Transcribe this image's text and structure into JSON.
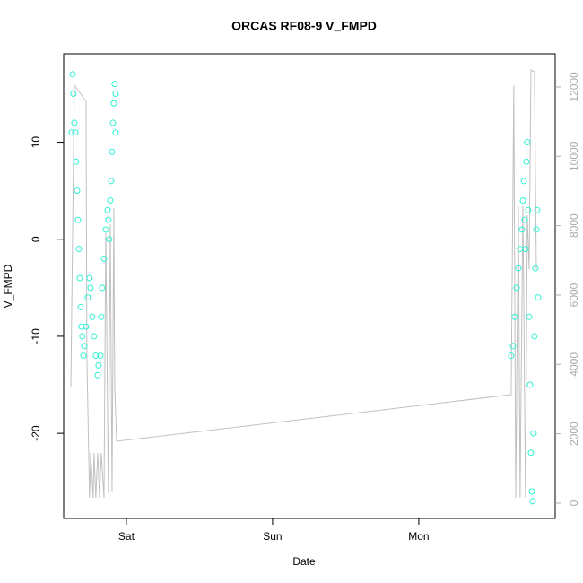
{
  "chart_data": {
    "type": "scatter",
    "title": "ORCAS RF08-9 V_FMPD",
    "xlabel": "Date",
    "ylabel": "V_FMPD",
    "xlim": [
      -0.429,
      2.933
    ],
    "xticks": [
      {
        "value": 0,
        "label": "Sat"
      },
      {
        "value": 1,
        "label": "Sun"
      },
      {
        "value": 2,
        "label": "Mon"
      }
    ],
    "ylim": [
      -28.77,
      19.11
    ],
    "yticks": [
      -20,
      -10,
      0,
      10
    ],
    "y2lim": [
      -440,
      12956
    ],
    "y2ticks": [
      0,
      2000,
      4000,
      6000,
      8000,
      10000,
      12000
    ],
    "series": [
      {
        "type": "line",
        "axis": "y2",
        "color": "#c0c0c0",
        "x": [
          -0.38,
          -0.356,
          -0.276,
          -0.27,
          -0.252,
          -0.245,
          -0.227,
          -0.221,
          -0.209,
          -0.196,
          -0.184,
          -0.172,
          -0.153,
          -0.141,
          -0.123,
          -0.11,
          -0.098,
          -0.086,
          -0.08,
          -0.067,
          2.632,
          2.65,
          2.663,
          2.681,
          2.693,
          2.712,
          2.73,
          2.742,
          2.755,
          2.767,
          2.791,
          2.804
        ],
        "values": [
          3336,
          12051,
          11585,
          4163,
          155,
          1448,
          155,
          1448,
          155,
          1448,
          155,
          1448,
          155,
          7784,
          284,
          8042,
          336,
          8508,
          3388,
          1784,
          3129,
          12051,
          155,
          8560,
          155,
          8560,
          155,
          8301,
          6749,
          12490,
          12439,
          6749
        ]
      },
      {
        "type": "scatter",
        "color": "#2ef2d4",
        "x": [
          -0.374,
          -0.368,
          -0.362,
          -0.356,
          -0.35,
          -0.344,
          -0.337,
          -0.331,
          -0.325,
          -0.319,
          -0.313,
          -0.307,
          -0.301,
          -0.294,
          -0.288,
          -0.276,
          -0.264,
          -0.252,
          -0.245,
          -0.233,
          -0.221,
          -0.209,
          -0.196,
          -0.19,
          -0.178,
          -0.172,
          -0.166,
          -0.153,
          -0.141,
          -0.129,
          -0.123,
          -0.117,
          -0.11,
          -0.104,
          -0.098,
          -0.092,
          -0.086,
          -0.08,
          -0.074,
          -0.074,
          2.632,
          2.644,
          2.656,
          2.669,
          2.681,
          2.693,
          2.706,
          2.712,
          2.718,
          2.724,
          2.73,
          2.736,
          2.742,
          2.748,
          2.755,
          2.761,
          2.767,
          2.773,
          2.779,
          2.785,
          2.791,
          2.798,
          2.804,
          2.81,
          2.816
        ],
        "values": [
          11,
          17,
          15,
          12,
          11,
          8,
          5,
          2,
          -1,
          -4,
          -7,
          -9,
          -10,
          -12,
          -11,
          -9,
          -6,
          -4,
          -5,
          -8,
          -10,
          -12,
          -14,
          -13,
          -12,
          -8,
          -5,
          -2,
          1,
          3,
          2,
          0,
          4,
          6,
          9,
          12,
          14,
          16,
          15,
          11,
          -12,
          -11,
          -8,
          -5,
          -3,
          -1,
          1,
          4,
          6,
          2,
          -1,
          8,
          10,
          3,
          -8,
          -15,
          -22,
          -26,
          -27,
          -20,
          -10,
          -3,
          1,
          3,
          -6
        ]
      }
    ]
  }
}
